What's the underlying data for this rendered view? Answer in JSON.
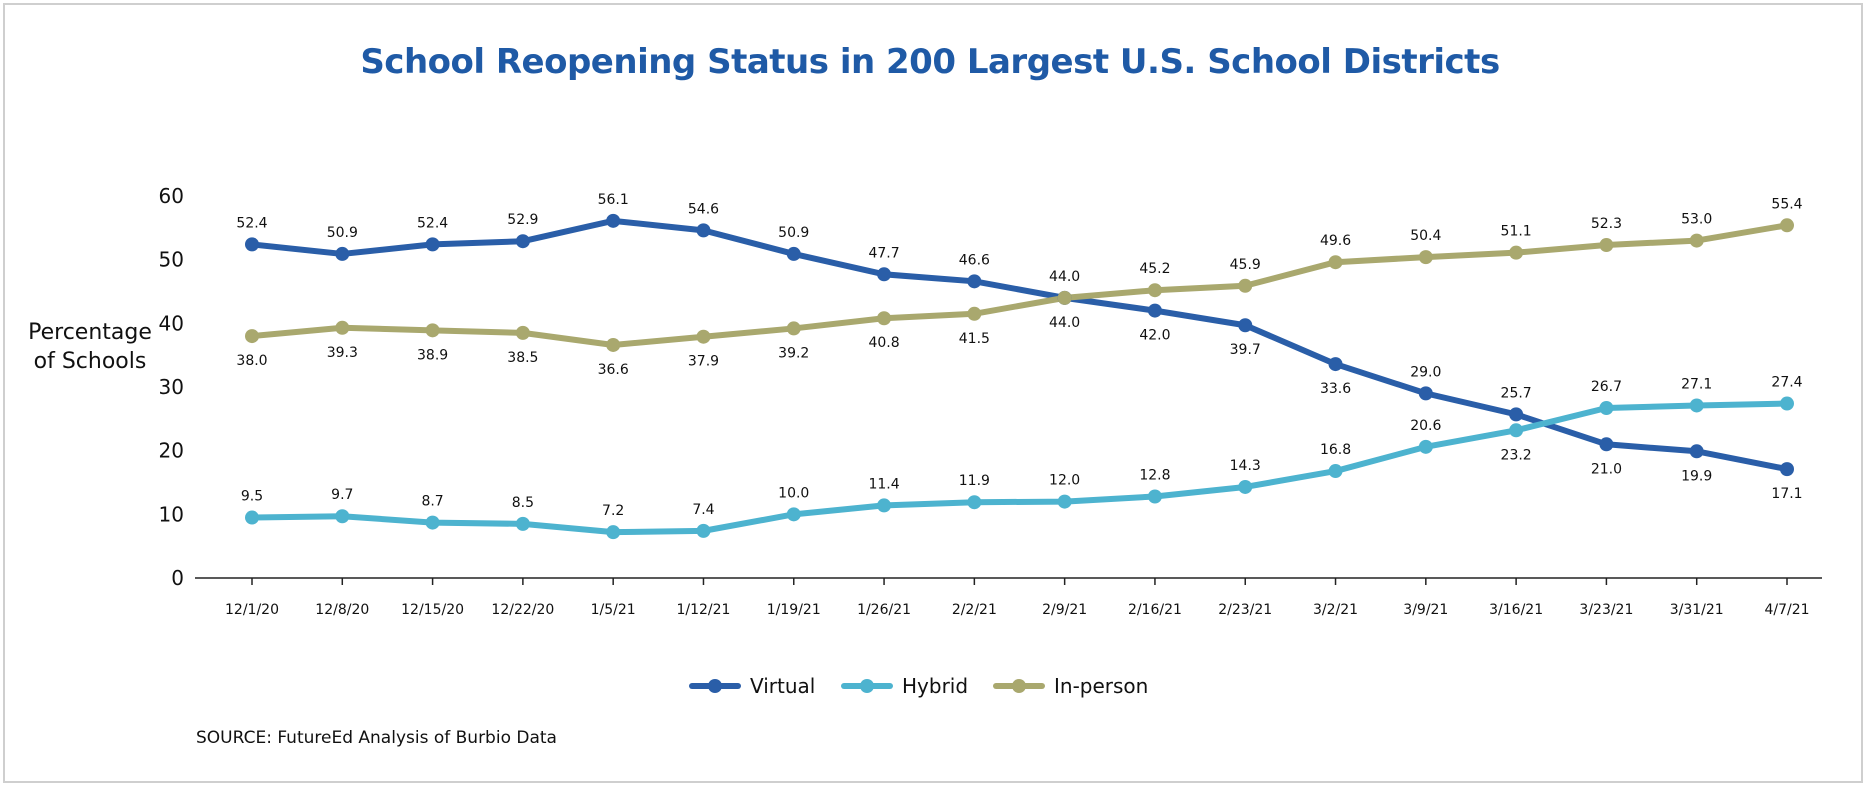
{
  "chart_data": {
    "type": "line",
    "title": "School Reopening Status in 200 Largest U.S. School Districts",
    "ylabel_line1": "Percentage",
    "ylabel_line2": "of Schools",
    "source": "SOURCE: FutureEd Analysis of Burbio Data",
    "ylim": [
      0,
      60
    ],
    "yticks": [
      0,
      10,
      20,
      30,
      40,
      50,
      60
    ],
    "legend_position": "bottom-center",
    "x": [
      "12/1/20",
      "12/8/20",
      "12/15/20",
      "12/22/20",
      "1/5/21",
      "1/12/21",
      "1/19/21",
      "1/26/21",
      "2/2/21",
      "2/9/21",
      "2/16/21",
      "2/23/21",
      "3/2/21",
      "3/9/21",
      "3/16/21",
      "3/23/21",
      "3/31/21",
      "4/7/21"
    ],
    "series": [
      {
        "name": "Virtual",
        "color": "#2a5ea8",
        "values": [
          52.4,
          50.9,
          52.4,
          52.9,
          56.1,
          54.6,
          50.9,
          47.7,
          46.6,
          44.0,
          42.0,
          39.7,
          33.6,
          29.0,
          25.7,
          21.0,
          19.9,
          17.1
        ],
        "labels": [
          "52.4",
          "50.9",
          "52.4",
          "52.9",
          "56.1",
          "54.6",
          "50.9",
          "47.7",
          "46.6",
          "44.0",
          "42.0",
          "39.7",
          "33.6",
          "29.0",
          "25.7",
          "21.0",
          "19.9",
          "17.1"
        ],
        "label_pos": [
          "above",
          "above",
          "above",
          "above",
          "above",
          "above",
          "above",
          "above",
          "above",
          "below",
          "below",
          "below",
          "below",
          "above",
          "above",
          "below",
          "below",
          "below"
        ]
      },
      {
        "name": "Hybrid",
        "color": "#4db3cf",
        "values": [
          9.5,
          9.7,
          8.7,
          8.5,
          7.2,
          7.4,
          10.0,
          11.4,
          11.9,
          12.0,
          12.8,
          14.3,
          16.8,
          20.6,
          23.2,
          26.7,
          27.1,
          27.4
        ],
        "labels": [
          "9.5",
          "9.7",
          "8.7",
          "8.5",
          "7.2",
          "7.4",
          "10.0",
          "11.4",
          "11.9",
          "12.0",
          "12.8",
          "14.3",
          "16.8",
          "20.6",
          "23.2",
          "26.7",
          "27.1",
          "27.4"
        ],
        "label_pos": [
          "above",
          "above",
          "above",
          "above",
          "above",
          "above",
          "above",
          "above",
          "above",
          "above",
          "above",
          "above",
          "above",
          "above",
          "below",
          "above",
          "above",
          "above"
        ]
      },
      {
        "name": "In-person",
        "color": "#a9a86e",
        "values": [
          38.0,
          39.3,
          38.9,
          38.5,
          36.6,
          37.9,
          39.2,
          40.8,
          41.5,
          44.0,
          45.2,
          45.9,
          49.6,
          50.4,
          51.1,
          52.3,
          53.0,
          55.4
        ],
        "labels": [
          "38.0",
          "39.3",
          "38.9",
          "38.5",
          "36.6",
          "37.9",
          "39.2",
          "40.8",
          "41.5",
          "44.0",
          "45.2",
          "45.9",
          "49.6",
          "50.4",
          "51.1",
          "52.3",
          "53.0",
          "55.4"
        ],
        "label_pos": [
          "below",
          "below",
          "below",
          "below",
          "below",
          "below",
          "below",
          "below",
          "below",
          "above",
          "above",
          "above",
          "above",
          "above",
          "above",
          "above",
          "above",
          "above"
        ]
      }
    ]
  }
}
